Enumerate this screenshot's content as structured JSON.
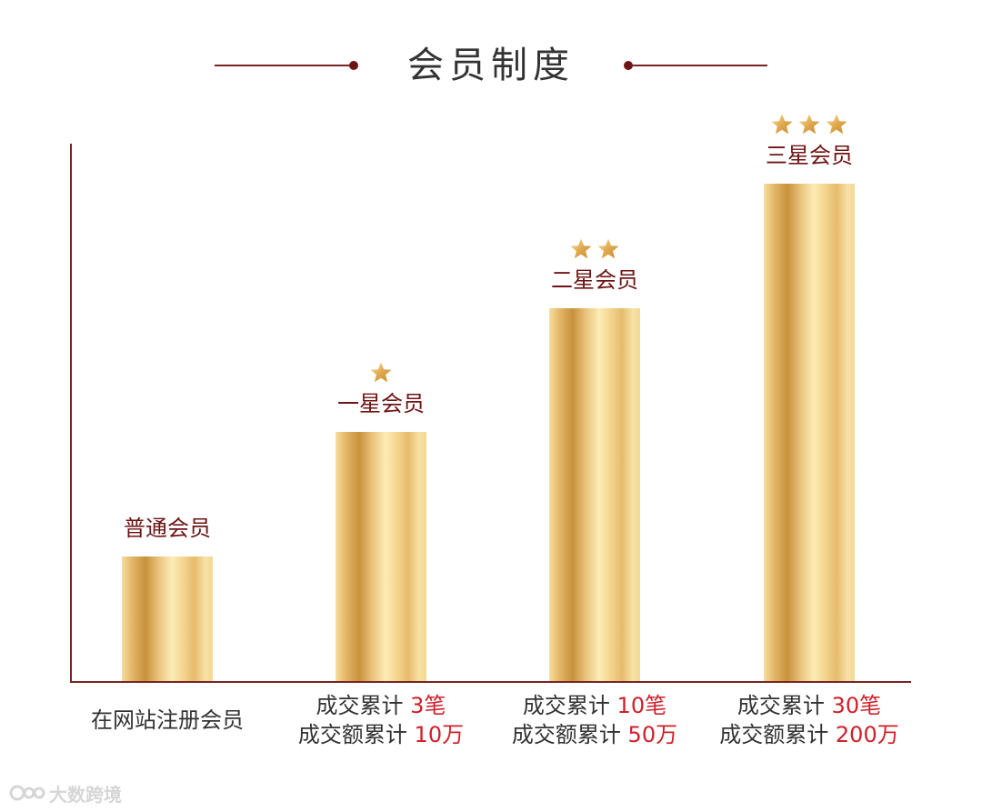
{
  "header": {
    "title": "会员制度"
  },
  "colors": {
    "accent": "#6e1414",
    "highlight": "#d11f2a",
    "bar_gold": "#e6bb6c",
    "text": "#333333"
  },
  "chart_data": {
    "type": "bar",
    "title": "会员制度",
    "xlabel": "",
    "ylabel": "",
    "grid": false,
    "categories": [
      "普通会员",
      "一星会员",
      "二星会员",
      "三星会员"
    ],
    "values": [
      1,
      2,
      3,
      4
    ],
    "ylim": [
      0,
      4.3
    ],
    "stars": [
      0,
      1,
      2,
      3
    ],
    "conditions": [
      {
        "line1": "在网站注册会员"
      },
      {
        "line1_prefix": "成交累计 ",
        "line1_value": "3笔",
        "line2_prefix": "成交额累计 ",
        "line2_value": "10万"
      },
      {
        "line1_prefix": "成交累计 ",
        "line1_value": "10笔",
        "line2_prefix": "成交额累计 ",
        "line2_value": "50万"
      },
      {
        "line1_prefix": "成交累计 ",
        "line1_value": "30笔",
        "line2_prefix": "成交额累计 ",
        "line2_value": "200万"
      }
    ]
  },
  "watermark": {
    "text": "大数跨境",
    "icon": "brand-logo-icon"
  }
}
